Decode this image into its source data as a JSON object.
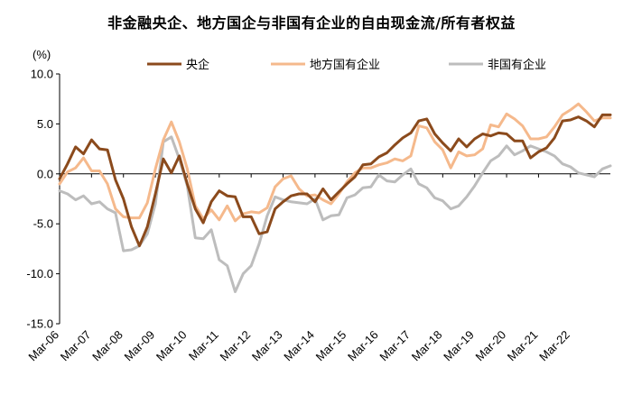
{
  "chart_data": {
    "type": "line",
    "title": "非金融央企、地方国企与非国有企业的自由现金流/所有者权益",
    "ylabel": "(%)",
    "xlabel": "",
    "ylim": [
      -15,
      10
    ],
    "yticks": [
      "10.0",
      "5.0",
      "0.0",
      "-5.0",
      "-10.0",
      "-15.0"
    ],
    "xticks": [
      "Mar-06",
      "Mar-07",
      "Mar-08",
      "Mar-09",
      "Mar-10",
      "Mar-11",
      "Mar-12",
      "Mar-13",
      "Mar-14",
      "Mar-15",
      "Mar-16",
      "Mar-17",
      "Mar-18",
      "Mar-19",
      "Mar-20",
      "Mar-21",
      "Mar-22"
    ],
    "legend_position": "top-center",
    "grid": false,
    "series": [
      {
        "name": "央企",
        "color": "#8B4A1C",
        "values": [
          -0.5,
          1.0,
          2.7,
          2.0,
          3.4,
          2.5,
          2.4,
          -0.6,
          -2.5,
          -5.3,
          -7.2,
          -5.3,
          -2.0,
          1.5,
          0.1,
          1.8,
          -1.0,
          -3.5,
          -4.9,
          -2.8,
          -1.7,
          -2.2,
          -2.3,
          -4.3,
          -4.3,
          -6.0,
          -5.8,
          -3.5,
          -2.8,
          -2.2,
          -2.0,
          -2.0,
          -2.8,
          -1.5,
          -2.6,
          -1.8,
          -1.0,
          -0.3,
          0.9,
          1.0,
          1.7,
          2.1,
          2.9,
          3.6,
          4.1,
          5.3,
          5.5,
          4.0,
          3.1,
          2.3,
          3.5,
          2.7,
          3.5,
          4.0,
          3.8,
          4.1,
          4.0,
          3.3,
          3.3,
          1.6,
          2.2,
          2.6,
          3.6,
          5.3,
          5.4,
          5.7,
          5.3,
          4.7,
          5.9,
          5.9
        ]
      },
      {
        "name": "地方国有企业",
        "color": "#F5B98C",
        "values": [
          -1.0,
          0.2,
          0.6,
          1.6,
          0.3,
          0.3,
          -1.0,
          -3.5,
          -4.3,
          -4.4,
          -4.4,
          -2.9,
          0.5,
          3.4,
          5.2,
          3.2,
          0.5,
          -3.2,
          -4.5,
          -3.6,
          -4.6,
          -3.2,
          -4.7,
          -4.0,
          -3.8,
          -3.9,
          -3.4,
          -1.3,
          -0.5,
          -0.2,
          -1.5,
          -2.2,
          -2.1,
          -2.6,
          -3.0,
          -2.0,
          -0.8,
          0.1,
          0.6,
          0.6,
          0.9,
          1.1,
          1.5,
          1.3,
          1.8,
          4.8,
          4.6,
          3.2,
          2.4,
          0.6,
          2.2,
          1.8,
          1.9,
          2.5,
          4.9,
          4.7,
          6.0,
          5.5,
          4.8,
          3.5,
          3.5,
          3.7,
          4.7,
          5.9,
          6.4,
          7.0,
          6.2,
          5.3,
          5.6,
          5.6
        ]
      },
      {
        "name": "非国有企业",
        "color": "#BDBDBD",
        "values": [
          -1.7,
          -2.0,
          -2.6,
          -2.2,
          -3.0,
          -2.8,
          -3.5,
          -3.9,
          -7.7,
          -7.6,
          -7.2,
          -6.0,
          -3.0,
          3.2,
          3.7,
          1.5,
          -1.2,
          -6.4,
          -6.5,
          -5.6,
          -8.6,
          -9.2,
          -11.8,
          -10.0,
          -9.2,
          -7.0,
          -4.2,
          -2.3,
          -2.6,
          -2.8,
          -2.9,
          -3.0,
          -2.5,
          -4.6,
          -4.2,
          -4.1,
          -2.4,
          -2.1,
          -1.4,
          -1.3,
          -0.1,
          -0.7,
          -0.8,
          -0.1,
          0.5,
          -1.0,
          -1.4,
          -2.4,
          -2.7,
          -3.5,
          -3.2,
          -2.3,
          -1.2,
          0.1,
          1.3,
          1.8,
          2.8,
          1.9,
          2.3,
          2.8,
          2.5,
          2.2,
          1.8,
          1.0,
          0.7,
          0.1,
          -0.1,
          -0.3,
          0.5,
          0.8
        ]
      }
    ]
  }
}
